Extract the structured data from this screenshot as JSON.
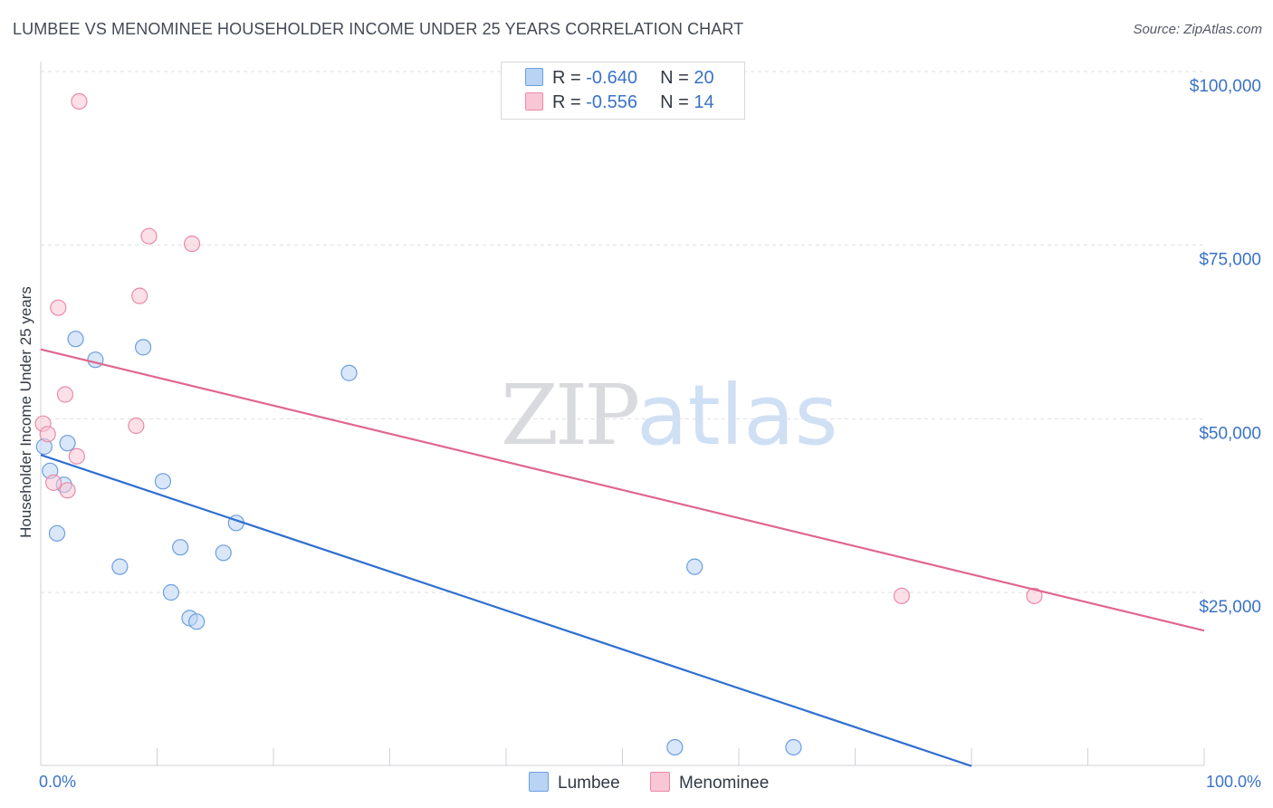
{
  "title": "LUMBEE VS MENOMINEE HOUSEHOLDER INCOME UNDER 25 YEARS CORRELATION CHART",
  "source": "Source: ZipAtlas.com",
  "watermark": {
    "zip": "ZIP",
    "atlas": "atlas"
  },
  "legend": {
    "rows": [
      {
        "r_label": "R =",
        "r_value": "-0.640",
        "n_label": "N =",
        "n_value": "20",
        "color": "#b9d3f4",
        "border": "#6b9fe0"
      },
      {
        "r_label": "R =",
        "r_value": "-0.556",
        "n_label": "N =",
        "n_value": "14",
        "color": "#f9c6d6",
        "border": "#e98aa8"
      }
    ]
  },
  "bottom_legend": [
    {
      "label": "Lumbee",
      "color": "#b9d3f4",
      "border": "#6b9fe0"
    },
    {
      "label": "Menominee",
      "color": "#f9c6d6",
      "border": "#e98aa8"
    }
  ],
  "chart_data": {
    "type": "scatter",
    "title": "LUMBEE VS MENOMINEE HOUSEHOLDER INCOME UNDER 25 YEARS CORRELATION CHART",
    "xlabel": "",
    "ylabel": "Householder Income Under 25 years",
    "xlim": [
      0,
      100
    ],
    "ylim": [
      0,
      104000
    ],
    "x_tick_labels": {
      "min": "0.0%",
      "max": "100.0%"
    },
    "y_ticks": [
      {
        "value": 25000,
        "label": "$25,000"
      },
      {
        "value": 50000,
        "label": "$50,000"
      },
      {
        "value": 75000,
        "label": "$75,000"
      },
      {
        "value": 100000,
        "label": "$100,000"
      }
    ],
    "series": [
      {
        "name": "Lumbee",
        "color": "#6b9fe0",
        "fill": "#b9d3f4",
        "line_color": "#2f6fd1",
        "trend": {
          "x": [
            0,
            80
          ],
          "y": [
            44800,
            0
          ]
        },
        "points": [
          {
            "x": 0.3,
            "y": 46000
          },
          {
            "x": 0.8,
            "y": 42500
          },
          {
            "x": 1.4,
            "y": 33500
          },
          {
            "x": 2.0,
            "y": 40500
          },
          {
            "x": 2.3,
            "y": 46500
          },
          {
            "x": 3.0,
            "y": 61500
          },
          {
            "x": 4.7,
            "y": 58500
          },
          {
            "x": 6.8,
            "y": 28700
          },
          {
            "x": 8.8,
            "y": 60300
          },
          {
            "x": 10.5,
            "y": 41000
          },
          {
            "x": 11.2,
            "y": 25000
          },
          {
            "x": 12.0,
            "y": 31500
          },
          {
            "x": 12.8,
            "y": 21300
          },
          {
            "x": 13.4,
            "y": 20800
          },
          {
            "x": 15.7,
            "y": 30700
          },
          {
            "x": 16.8,
            "y": 35000
          },
          {
            "x": 26.5,
            "y": 56600
          },
          {
            "x": 54.5,
            "y": 2700
          },
          {
            "x": 56.2,
            "y": 28700
          },
          {
            "x": 64.7,
            "y": 2700
          }
        ]
      },
      {
        "name": "Menominee",
        "color": "#e98aa8",
        "fill": "#f9c6d6",
        "line_color": "#e0668f",
        "trend": {
          "x": [
            0,
            100
          ],
          "y": [
            60000,
            19500
          ]
        },
        "points": [
          {
            "x": 0.2,
            "y": 49300
          },
          {
            "x": 0.6,
            "y": 47800
          },
          {
            "x": 1.1,
            "y": 40800
          },
          {
            "x": 1.5,
            "y": 66000
          },
          {
            "x": 2.1,
            "y": 53500
          },
          {
            "x": 2.3,
            "y": 39700
          },
          {
            "x": 3.1,
            "y": 44600
          },
          {
            "x": 3.3,
            "y": 95700
          },
          {
            "x": 8.2,
            "y": 49000
          },
          {
            "x": 8.5,
            "y": 67700
          },
          {
            "x": 9.3,
            "y": 76300
          },
          {
            "x": 13.0,
            "y": 75200
          },
          {
            "x": 74.0,
            "y": 24500
          },
          {
            "x": 85.4,
            "y": 24500
          }
        ]
      }
    ]
  }
}
